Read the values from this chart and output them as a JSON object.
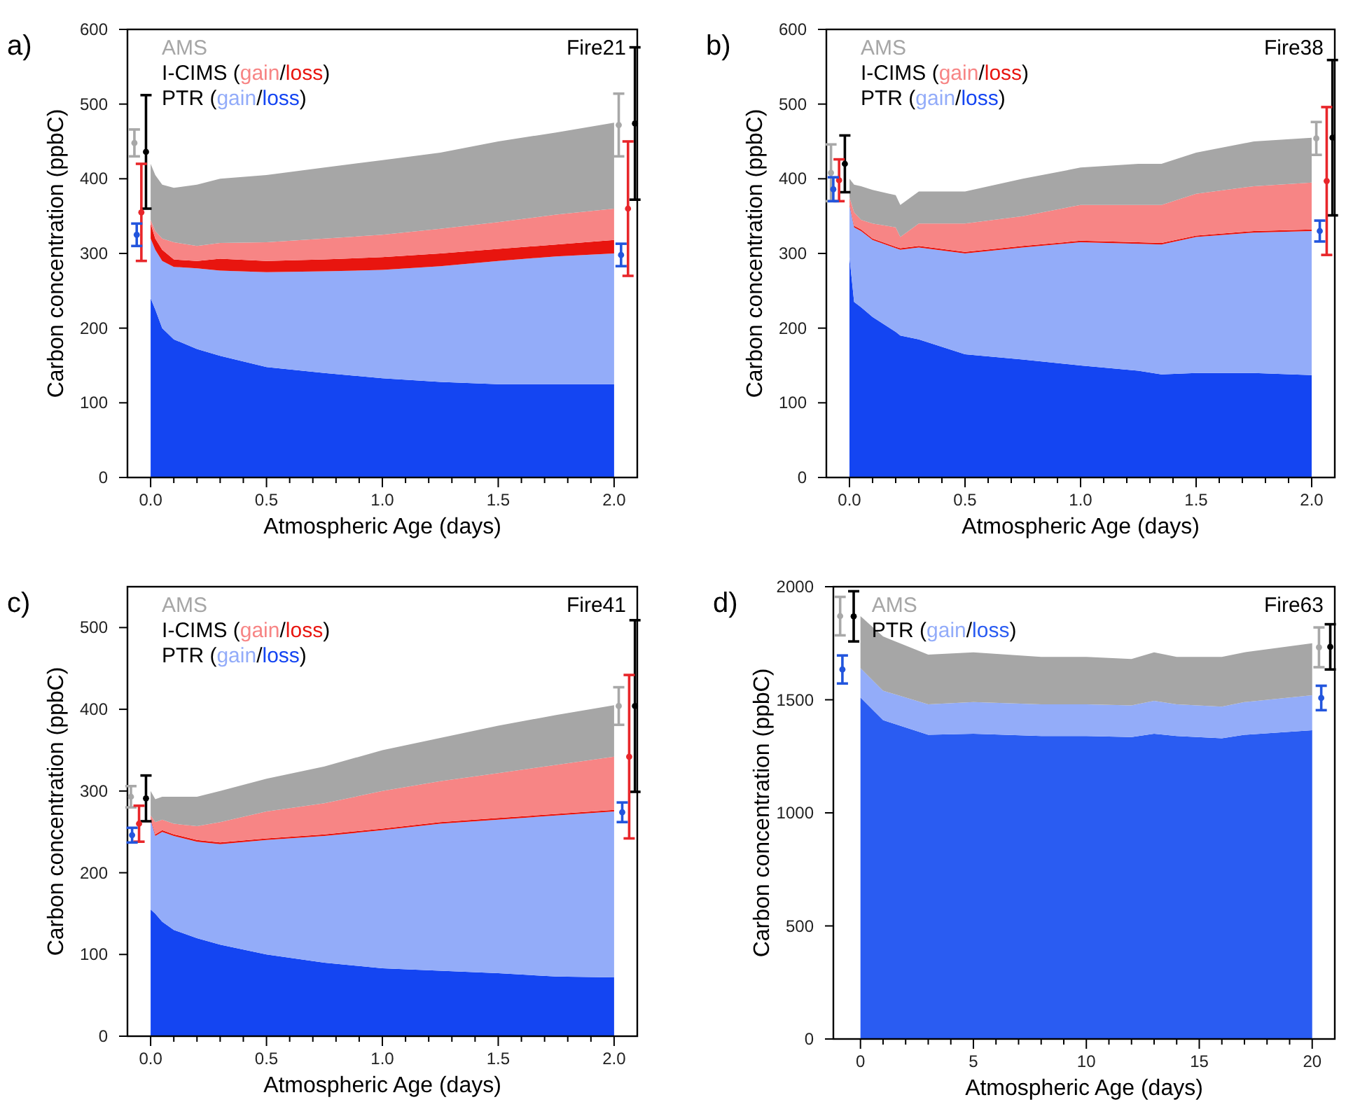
{
  "chart_data": [
    {
      "type": "area",
      "stacked": true,
      "subtitle": "a)",
      "title": "Fire21",
      "xlabel": "Atmospheric Age (days)",
      "ylabel": "Carbon concentration (ppbC)",
      "legend": "top left",
      "annotations": [
        "I-CIMS (",
        "/",
        ")",
        "PTR (",
        "/",
        ")"
      ],
      "xlim": [
        -0.1,
        2.1
      ],
      "xticks": [
        {
          "value": 0,
          "label": "0.0"
        },
        {
          "value": 0.1,
          "label": null
        },
        {
          "value": 0.2,
          "label": null
        },
        {
          "value": 0.3,
          "label": null
        },
        {
          "value": 0.4,
          "label": null
        },
        {
          "value": 0.5,
          "label": "0.5"
        },
        {
          "value": 0.6,
          "label": null
        },
        {
          "value": 0.7,
          "label": null
        },
        {
          "value": 0.8,
          "label": null
        },
        {
          "value": 0.9,
          "label": null
        },
        {
          "value": 1,
          "label": "1.0"
        },
        {
          "value": 1.1,
          "label": null
        },
        {
          "value": 1.2,
          "label": null
        },
        {
          "value": 1.3,
          "label": null
        },
        {
          "value": 1.4,
          "label": null
        },
        {
          "value": 1.5,
          "label": "1.5"
        },
        {
          "value": 1.6,
          "label": null
        },
        {
          "value": 1.7,
          "label": null
        },
        {
          "value": 1.8,
          "label": null
        },
        {
          "value": 1.9,
          "label": null
        },
        {
          "value": 2,
          "label": "2.0"
        }
      ],
      "ylim": [
        0,
        600
      ],
      "yticks": [
        0,
        100,
        200,
        300,
        400,
        500,
        600
      ],
      "x": [
        0,
        0.02,
        0.05,
        0.1,
        0.2,
        0.3,
        0.5,
        0.75,
        1.0,
        1.25,
        1.5,
        1.75,
        2.0
      ],
      "series": [
        {
          "name": "loss",
          "color": "#1445f2",
          "values": [
            240,
            225,
            200,
            185,
            172,
            163,
            148,
            140,
            133,
            128,
            125,
            125,
            125
          ]
        },
        {
          "name": "gain",
          "color": "#93acf9",
          "values": [
            80,
            80,
            90,
            97,
            108,
            114,
            127,
            136,
            145,
            155,
            165,
            171,
            175
          ]
        },
        {
          "name": "loss",
          "color": "#e8150f",
          "values": [
            20,
            15,
            15,
            10,
            10,
            16,
            15,
            16,
            17,
            17,
            16,
            16,
            18
          ]
        },
        {
          "name": "gain",
          "color": "#f78585",
          "values": [
            5,
            10,
            15,
            23,
            20,
            21,
            25,
            28,
            30,
            33,
            36,
            40,
            42
          ]
        },
        {
          "name": "AMS",
          "color": "#a6a6a6",
          "values": [
            75,
            75,
            72,
            73,
            82,
            86,
            90,
            95,
            100,
            102,
            108,
            110,
            115
          ]
        },
        {
          "type": "scatter",
          "marker": "circle",
          "color": "#a8a8a8",
          "x": [
            -0.07,
            2.02
          ],
          "values": [
            448,
            472
          ],
          "errors": [
            18,
            42
          ]
        },
        {
          "type": "scatter",
          "marker": "circle",
          "color": "#000000",
          "x": [
            -0.02,
            2.09
          ],
          "values": [
            436,
            474
          ],
          "errors": [
            76,
            102
          ]
        },
        {
          "type": "scatter",
          "marker": "circle",
          "color": "#e8262a",
          "x": [
            -0.04,
            2.06
          ],
          "values": [
            355,
            360
          ],
          "errors": [
            65,
            90
          ]
        },
        {
          "type": "scatter",
          "marker": "circle",
          "color": "#2255dd",
          "x": [
            -0.06,
            2.03
          ],
          "values": [
            325,
            298
          ],
          "errors": [
            15,
            15
          ]
        }
      ]
    },
    {
      "type": "area",
      "stacked": true,
      "subtitle": "b)",
      "title": "Fire38",
      "xlabel": "Atmospheric Age (days)",
      "ylabel": "Carbon concentration (ppbC)",
      "legend": "top left",
      "annotations": [
        "I-CIMS (",
        "/",
        ")",
        "PTR (",
        "/",
        ")"
      ],
      "xlim": [
        -0.1,
        2.1
      ],
      "xticks": [
        {
          "value": 0,
          "label": "0.0"
        },
        {
          "value": 0.1,
          "label": null
        },
        {
          "value": 0.2,
          "label": null
        },
        {
          "value": 0.3,
          "label": null
        },
        {
          "value": 0.4,
          "label": null
        },
        {
          "value": 0.5,
          "label": "0.5"
        },
        {
          "value": 0.6,
          "label": null
        },
        {
          "value": 0.7,
          "label": null
        },
        {
          "value": 0.8,
          "label": null
        },
        {
          "value": 0.9,
          "label": null
        },
        {
          "value": 1,
          "label": "1.0"
        },
        {
          "value": 1.1,
          "label": null
        },
        {
          "value": 1.2,
          "label": null
        },
        {
          "value": 1.3,
          "label": null
        },
        {
          "value": 1.4,
          "label": null
        },
        {
          "value": 1.5,
          "label": "1.5"
        },
        {
          "value": 1.6,
          "label": null
        },
        {
          "value": 1.7,
          "label": null
        },
        {
          "value": 1.8,
          "label": null
        },
        {
          "value": 1.9,
          "label": null
        },
        {
          "value": 2,
          "label": "2.0"
        }
      ],
      "ylim": [
        0,
        600
      ],
      "yticks": [
        0,
        100,
        200,
        300,
        400,
        500,
        600
      ],
      "x": [
        0,
        0.02,
        0.05,
        0.1,
        0.2,
        0.22,
        0.3,
        0.5,
        0.75,
        1.0,
        1.25,
        1.35,
        1.5,
        1.75,
        2.0
      ],
      "series": [
        {
          "name": "loss",
          "color": "#1445f2",
          "values": [
            295,
            235,
            228,
            215,
            195,
            190,
            185,
            165,
            158,
            150,
            143,
            138,
            140,
            140,
            137
          ]
        },
        {
          "name": "gain",
          "color": "#93acf9",
          "values": [
            70,
            100,
            102,
            103,
            112,
            115,
            123,
            135,
            150,
            165,
            170,
            174,
            182,
            188,
            193
          ]
        },
        {
          "name": "loss",
          "color": "#e8150f",
          "values": [
            2,
            2,
            2,
            2,
            2,
            2,
            2,
            2,
            2,
            2,
            2,
            2,
            2,
            2,
            2
          ]
        },
        {
          "name": "gain",
          "color": "#f78585",
          "values": [
            8,
            18,
            13,
            20,
            26,
            15,
            30,
            38,
            40,
            48,
            50,
            51,
            56,
            60,
            63
          ]
        },
        {
          "name": "AMS",
          "color": "#a6a6a6",
          "values": [
            25,
            37,
            45,
            45,
            43,
            43,
            43,
            43,
            50,
            50,
            55,
            55,
            55,
            60,
            60
          ]
        },
        {
          "type": "scatter",
          "marker": "circle",
          "color": "#a8a8a8",
          "x": [
            -0.08,
            2.02
          ],
          "values": [
            408,
            454
          ],
          "errors": [
            38,
            22
          ]
        },
        {
          "type": "scatter",
          "marker": "circle",
          "color": "#000000",
          "x": [
            -0.02,
            2.09
          ],
          "values": [
            420,
            455
          ],
          "errors": [
            38,
            104
          ]
        },
        {
          "type": "scatter",
          "marker": "circle",
          "color": "#e8262a",
          "x": [
            -0.045,
            2.065
          ],
          "values": [
            398,
            397
          ],
          "errors": [
            28,
            99
          ]
        },
        {
          "type": "scatter",
          "marker": "circle",
          "color": "#2255dd",
          "x": [
            -0.07,
            2.035
          ],
          "values": [
            386,
            330
          ],
          "errors": [
            16,
            14
          ]
        }
      ]
    },
    {
      "type": "area",
      "stacked": true,
      "subtitle": "c)",
      "title": "Fire41",
      "xlabel": "Atmospheric Age (days)",
      "ylabel": "Carbon concentration (ppbC)",
      "legend": "top left",
      "annotations": [
        "I-CIMS (",
        "/",
        ")",
        "PTR (",
        "/",
        ")"
      ],
      "xlim": [
        -0.1,
        2.1
      ],
      "xticks": [
        {
          "value": 0,
          "label": "0.0"
        },
        {
          "value": 0.1,
          "label": null
        },
        {
          "value": 0.2,
          "label": null
        },
        {
          "value": 0.3,
          "label": null
        },
        {
          "value": 0.4,
          "label": null
        },
        {
          "value": 0.5,
          "label": "0.5"
        },
        {
          "value": 0.6,
          "label": null
        },
        {
          "value": 0.7,
          "label": null
        },
        {
          "value": 0.8,
          "label": null
        },
        {
          "value": 0.9,
          "label": null
        },
        {
          "value": 1,
          "label": "1.0"
        },
        {
          "value": 1.1,
          "label": null
        },
        {
          "value": 1.2,
          "label": null
        },
        {
          "value": 1.3,
          "label": null
        },
        {
          "value": 1.4,
          "label": null
        },
        {
          "value": 1.5,
          "label": "1.5"
        },
        {
          "value": 1.6,
          "label": null
        },
        {
          "value": 1.7,
          "label": null
        },
        {
          "value": 1.8,
          "label": null
        },
        {
          "value": 1.9,
          "label": null
        },
        {
          "value": 2,
          "label": "2.0"
        }
      ],
      "ylim": [
        0,
        550
      ],
      "yticks": [
        0,
        100,
        200,
        300,
        400,
        500
      ],
      "x": [
        0,
        0.02,
        0.05,
        0.1,
        0.2,
        0.3,
        0.5,
        0.75,
        1.0,
        1.25,
        1.5,
        1.75,
        2.0
      ],
      "series": [
        {
          "name": "loss",
          "color": "#1445f2",
          "values": [
            155,
            150,
            140,
            130,
            120,
            112,
            100,
            90,
            83,
            80,
            77,
            73,
            72
          ]
        },
        {
          "name": "gain",
          "color": "#93acf9",
          "values": [
            110,
            95,
            110,
            115,
            118,
            123,
            140,
            155,
            169,
            180,
            188,
            197,
            203
          ]
        },
        {
          "name": "loss",
          "color": "#e8150f",
          "values": [
            2,
            2,
            2,
            2,
            2,
            2,
            2,
            2,
            2,
            2,
            2,
            2,
            2
          ]
        },
        {
          "name": "gain",
          "color": "#f78585",
          "values": [
            3,
            15,
            13,
            13,
            17,
            25,
            33,
            38,
            46,
            50,
            55,
            60,
            65
          ]
        },
        {
          "name": "AMS",
          "color": "#a6a6a6",
          "values": [
            30,
            28,
            28,
            33,
            36,
            38,
            40,
            45,
            50,
            53,
            58,
            61,
            63
          ]
        },
        {
          "type": "scatter",
          "marker": "circle",
          "color": "#a8a8a8",
          "x": [
            -0.085,
            2.02
          ],
          "values": [
            293,
            404
          ],
          "errors": [
            13,
            23
          ]
        },
        {
          "type": "scatter",
          "marker": "circle",
          "color": "#000000",
          "x": [
            -0.02,
            2.09
          ],
          "values": [
            291,
            404
          ],
          "errors": [
            28,
            105
          ]
        },
        {
          "type": "scatter",
          "marker": "circle",
          "color": "#e8262a",
          "x": [
            -0.05,
            2.065
          ],
          "values": [
            260,
            342
          ],
          "errors": [
            22,
            100
          ]
        },
        {
          "type": "scatter",
          "marker": "circle",
          "color": "#2255dd",
          "x": [
            -0.08,
            2.035
          ],
          "values": [
            246,
            274
          ],
          "errors": [
            9,
            12
          ]
        }
      ]
    },
    {
      "type": "area",
      "stacked": true,
      "subtitle": "d)",
      "title": "Fire63",
      "xlabel": "Atmospheric Age (days)",
      "ylabel": "Carbon concentration (ppbC)",
      "legend": "top left",
      "annotations": [
        "PTR (",
        "/",
        ")"
      ],
      "xlim": [
        -1.2,
        21
      ],
      "xticks": [
        0,
        {
          "value": 1,
          "label": null
        },
        {
          "value": 2,
          "label": null
        },
        {
          "value": 3,
          "label": null
        },
        {
          "value": 4,
          "label": null
        },
        5,
        {
          "value": 6,
          "label": null
        },
        {
          "value": 7,
          "label": null
        },
        {
          "value": 8,
          "label": null
        },
        {
          "value": 9,
          "label": null
        },
        10,
        {
          "value": 11,
          "label": null
        },
        {
          "value": 12,
          "label": null
        },
        {
          "value": 13,
          "label": null
        },
        {
          "value": 14,
          "label": null
        },
        15,
        {
          "value": 16,
          "label": null
        },
        {
          "value": 17,
          "label": null
        },
        {
          "value": 18,
          "label": null
        },
        {
          "value": 19,
          "label": null
        },
        20
      ],
      "ylim": [
        0,
        2000
      ],
      "yticks": [
        0,
        500,
        1000,
        1500,
        2000
      ],
      "x": [
        0,
        1,
        3,
        5,
        8,
        10,
        12,
        13,
        14,
        16,
        17,
        20
      ],
      "series": [
        {
          "name": "loss",
          "color": "#2a5cf2",
          "values": [
            1510,
            1410,
            1345,
            1350,
            1340,
            1340,
            1335,
            1350,
            1340,
            1330,
            1345,
            1365
          ]
        },
        {
          "name": "gain",
          "color": "#93acf9",
          "values": [
            130,
            130,
            135,
            140,
            140,
            140,
            140,
            145,
            140,
            140,
            145,
            155
          ]
        },
        {
          "name": "AMS",
          "color": "#a6a6a6",
          "values": [
            230,
            240,
            220,
            220,
            210,
            210,
            205,
            215,
            210,
            220,
            220,
            230
          ]
        },
        {
          "type": "scatter",
          "marker": "circle",
          "color": "#a8a8a8",
          "x": [
            -0.9,
            20.3
          ],
          "values": [
            1870,
            1732
          ],
          "errors": [
            85,
            88
          ]
        },
        {
          "type": "scatter",
          "marker": "circle",
          "color": "#000000",
          "x": [
            -0.3,
            20.8
          ],
          "values": [
            1869,
            1734
          ],
          "errors": [
            111,
            100
          ]
        },
        {
          "type": "scatter",
          "marker": "circle",
          "color": "#2255dd",
          "x": [
            -0.8,
            20.4
          ],
          "values": [
            1634,
            1508
          ],
          "errors": [
            62,
            54
          ]
        }
      ]
    }
  ]
}
